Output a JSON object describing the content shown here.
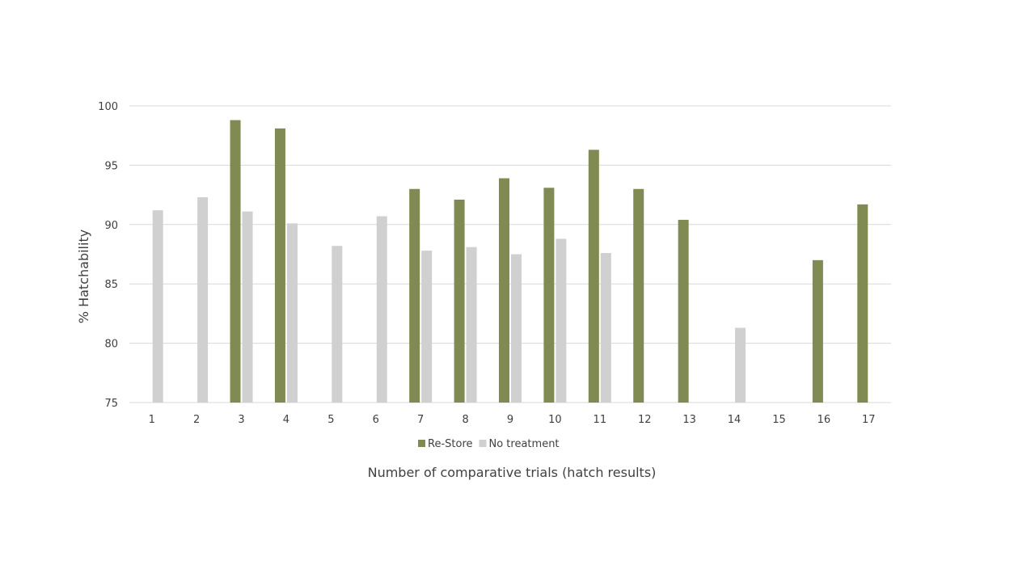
{
  "chart_data": {
    "type": "bar",
    "title": "",
    "xlabel": "Number of comparative trials (hatch results)",
    "ylabel": "% Hatchability",
    "ylim": [
      75,
      100
    ],
    "yticks": [
      "75",
      "80",
      "85",
      "90",
      "95",
      "100"
    ],
    "grid": true,
    "legend_position": "bottom",
    "categories": [
      "1",
      "2",
      "3",
      "4",
      "5",
      "6",
      "7",
      "8",
      "9",
      "10",
      "11",
      "12",
      "13",
      "14",
      "15",
      "16",
      "17"
    ],
    "series": [
      {
        "name": "Re-Store",
        "color": "#7f8b52",
        "values": [
          null,
          null,
          98.8,
          98.1,
          null,
          null,
          93.0,
          92.1,
          93.9,
          93.1,
          96.3,
          93.0,
          90.4,
          null,
          null,
          87.0,
          91.7
        ]
      },
      {
        "name": "No treatment",
        "color": "#d0d0d0",
        "values": [
          91.2,
          92.3,
          91.1,
          90.1,
          88.2,
          90.7,
          87.8,
          88.1,
          87.5,
          88.8,
          87.6,
          null,
          null,
          81.3,
          null,
          null,
          null
        ]
      }
    ]
  }
}
